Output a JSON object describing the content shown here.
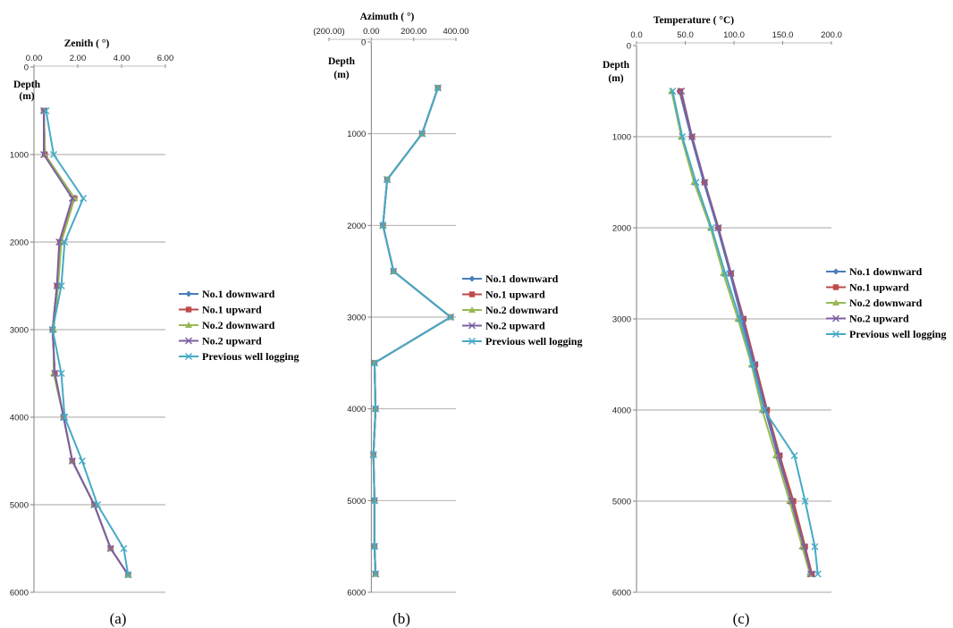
{
  "colors": {
    "No.1 downward": "#4a7ebb",
    "No.1 upward": "#be4b48",
    "No.2 downward": "#98b954",
    "No.2 upward": "#7d60a0",
    "Previous well logging": "#46aac5",
    "negative_tick": "#ff0000"
  },
  "chart_data": [
    {
      "type": "line",
      "caption": "(a)",
      "title": "Zenith ( °)",
      "ylabel": [
        "Depth",
        "(m)"
      ],
      "xlim": [
        0,
        6
      ],
      "x_ticks": [
        "0.00",
        "2.00",
        "4.00",
        "6.00"
      ],
      "ylim": [
        0,
        6000
      ],
      "y_ticks": [
        "0",
        "1000",
        "2000",
        "3000",
        "4000",
        "5000",
        "6000"
      ],
      "y_inverted": true,
      "grid": "horizontal",
      "legend": "right",
      "depth": [
        500,
        1000,
        1500,
        2000,
        2500,
        3000,
        3500,
        4000,
        4500,
        5000,
        5500,
        5800
      ],
      "series": [
        {
          "name": "No.1 downward",
          "marker": "diamond",
          "values": [
            0.45,
            0.5,
            1.85,
            1.2,
            1.05,
            0.85,
            0.95,
            1.35,
            1.75,
            2.75,
            3.5,
            4.3
          ]
        },
        {
          "name": "No.1 upward",
          "marker": "square",
          "values": [
            0.45,
            0.5,
            1.85,
            1.2,
            1.05,
            0.85,
            0.95,
            1.35,
            1.75,
            2.75,
            3.5,
            4.3
          ]
        },
        {
          "name": "No.2 downward",
          "marker": "triangle",
          "values": [
            0.45,
            0.5,
            1.85,
            1.25,
            1.1,
            0.9,
            0.9,
            1.35,
            1.75,
            2.75,
            3.5,
            4.3
          ]
        },
        {
          "name": "No.2 upward",
          "marker": "x",
          "values": [
            0.45,
            0.45,
            1.75,
            1.15,
            1.05,
            0.85,
            0.95,
            1.35,
            1.75,
            2.75,
            3.5,
            4.3
          ]
        },
        {
          "name": "Previous well logging",
          "marker": "x",
          "values": [
            0.55,
            0.9,
            2.25,
            1.4,
            1.25,
            0.85,
            1.25,
            1.4,
            2.2,
            2.9,
            4.1,
            4.3
          ]
        }
      ]
    },
    {
      "type": "line",
      "caption": "(b)",
      "title": "Azimuth ( °)",
      "ylabel": [
        "Depth",
        "(m)"
      ],
      "xlim": [
        -200,
        400
      ],
      "x_ticks": [
        "(200.00)",
        "0.00",
        "200.00",
        "400.00"
      ],
      "ylim": [
        0,
        6000
      ],
      "y_ticks": [
        "0",
        "1000",
        "2000",
        "3000",
        "4000",
        "5000",
        "6000"
      ],
      "y_inverted": true,
      "grid": "horizontal",
      "legend": "right",
      "depth": [
        500,
        1000,
        1500,
        2000,
        2500,
        3000,
        3500,
        4000,
        4500,
        5000,
        5500,
        5800
      ],
      "series": [
        {
          "name": "No.1 downward",
          "marker": "diamond",
          "values": [
            315,
            240,
            75,
            55,
            105,
            375,
            15,
            20,
            10,
            15,
            15,
            20
          ]
        },
        {
          "name": "No.1 upward",
          "marker": "square",
          "values": [
            315,
            240,
            75,
            55,
            105,
            375,
            15,
            20,
            10,
            15,
            15,
            20
          ]
        },
        {
          "name": "No.2 downward",
          "marker": "triangle",
          "values": [
            315,
            240,
            75,
            55,
            105,
            375,
            15,
            20,
            10,
            15,
            15,
            20
          ]
        },
        {
          "name": "No.2 upward",
          "marker": "x",
          "values": [
            315,
            240,
            75,
            55,
            105,
            375,
            15,
            20,
            10,
            15,
            15,
            20
          ]
        },
        {
          "name": "Previous well logging",
          "marker": "x",
          "values": [
            315,
            240,
            75,
            55,
            105,
            375,
            15,
            20,
            10,
            15,
            15,
            20
          ]
        }
      ]
    },
    {
      "type": "line",
      "caption": "(c)",
      "title": "Temperature ( °C)",
      "ylabel": [
        "Depth",
        "(m)"
      ],
      "xlim": [
        0,
        200
      ],
      "x_ticks": [
        "0.0",
        "50.0",
        "100.0",
        "150.0",
        "200.0"
      ],
      "ylim": [
        0,
        6000
      ],
      "y_ticks": [
        "0",
        "1000",
        "2000",
        "3000",
        "4000",
        "5000",
        "6000"
      ],
      "y_inverted": true,
      "grid": "horizontal",
      "legend": "right",
      "depth": [
        500,
        1000,
        1500,
        2000,
        2500,
        3000,
        3500,
        4000,
        4500,
        5000,
        5500,
        5800
      ],
      "series": [
        {
          "name": "No.1 downward",
          "marker": "diamond",
          "values": [
            44,
            56,
            69,
            83,
            96,
            108,
            120,
            132,
            145,
            159,
            171,
            178
          ]
        },
        {
          "name": "No.1 upward",
          "marker": "square",
          "values": [
            45,
            57,
            70,
            84,
            97,
            110,
            122,
            134,
            147,
            161,
            173,
            180
          ]
        },
        {
          "name": "No.2 downward",
          "marker": "triangle",
          "values": [
            36,
            46,
            59,
            76,
            89,
            104,
            118,
            129,
            143,
            157,
            170,
            178
          ]
        },
        {
          "name": "No.2 upward",
          "marker": "x",
          "values": [
            46,
            57,
            70,
            84,
            97,
            109,
            121,
            133,
            146,
            159,
            172,
            179
          ]
        },
        {
          "name": "Previous well logging",
          "marker": "x",
          "values": [
            37,
            47,
            61,
            77,
            91,
            106,
            119,
            131,
            162,
            173,
            183,
            186
          ]
        }
      ]
    }
  ]
}
